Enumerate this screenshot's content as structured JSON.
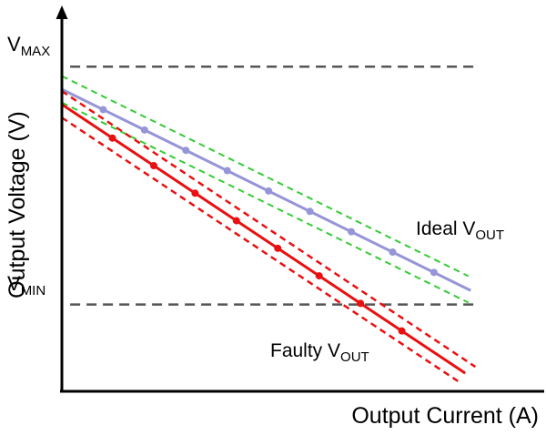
{
  "labels": {
    "ylabel": "Output Voltage (V)",
    "xlabel": "Output Current (A)",
    "vmax_main": "V",
    "vmax_sub": "MAX",
    "vmin_main": "V",
    "vmin_sub": "MIN",
    "ideal_main": "Ideal V",
    "ideal_sub": "OUT",
    "faulty_main": "Faulty V",
    "faulty_sub": "OUT"
  },
  "colors": {
    "axis": "#000000",
    "reference": "#555555",
    "ideal_line": "#9595d8",
    "ideal_tolerance": "#33cc33",
    "faulty_line": "#e81010"
  },
  "chart_data": {
    "type": "line",
    "title": "",
    "xlabel": "Output Current (A)",
    "ylabel": "Output Voltage (V)",
    "x_range": [
      0,
      10.4
    ],
    "y_range": [
      0,
      10.1
    ],
    "grid": false,
    "legend": "inline-annotations",
    "reference_lines": [
      {
        "name": "V_MAX",
        "y": 8.6,
        "x_start": 0.18,
        "x_end": 9.0,
        "color": "#555555",
        "style": "dashed"
      },
      {
        "name": "V_MIN",
        "y": 2.3,
        "x_start": 0.18,
        "x_end": 9.0,
        "color": "#555555",
        "style": "dashed"
      }
    ],
    "series": [
      {
        "name": "Ideal VOUT upper tolerance",
        "color": "#33cc33",
        "style": "dashed",
        "width": 2,
        "points": [
          [
            0,
            8.35
          ],
          [
            8.85,
            3.05
          ]
        ]
      },
      {
        "name": "Ideal VOUT lower tolerance",
        "color": "#33cc33",
        "style": "dashed",
        "width": 2,
        "points": [
          [
            0,
            7.65
          ],
          [
            8.85,
            2.35
          ]
        ]
      },
      {
        "name": "Ideal VOUT",
        "color": "#9595d8",
        "style": "solid",
        "width": 3,
        "points": [
          [
            0,
            8.0
          ],
          [
            8.9,
            2.67
          ]
        ],
        "marker_xs": [
          0.9,
          1.8,
          2.7,
          3.6,
          4.5,
          5.4,
          6.3,
          7.2,
          8.1
        ]
      },
      {
        "name": "Faulty VOUT upper tolerance",
        "color": "#e81010",
        "style": "dashed",
        "width": 2.5,
        "points": [
          [
            0,
            7.95
          ],
          [
            9.0,
            0.65
          ]
        ]
      },
      {
        "name": "Faulty VOUT lower tolerance",
        "color": "#e81010",
        "style": "dashed",
        "width": 2.5,
        "points": [
          [
            0,
            7.25
          ],
          [
            8.62,
            0.27
          ]
        ]
      },
      {
        "name": "Faulty VOUT",
        "color": "#e81010",
        "style": "solid",
        "width": 3,
        "points": [
          [
            0,
            7.6
          ],
          [
            8.78,
            0.48
          ]
        ],
        "marker_xs": [
          1.1,
          2.0,
          2.9,
          3.8,
          4.7,
          5.6,
          6.5,
          7.4
        ]
      }
    ],
    "annotations": [
      {
        "text": "Ideal VOUT",
        "x": 7.7,
        "y": 4.1
      },
      {
        "text": "Faulty VOUT",
        "x": 4.6,
        "y": 0.95
      }
    ]
  }
}
